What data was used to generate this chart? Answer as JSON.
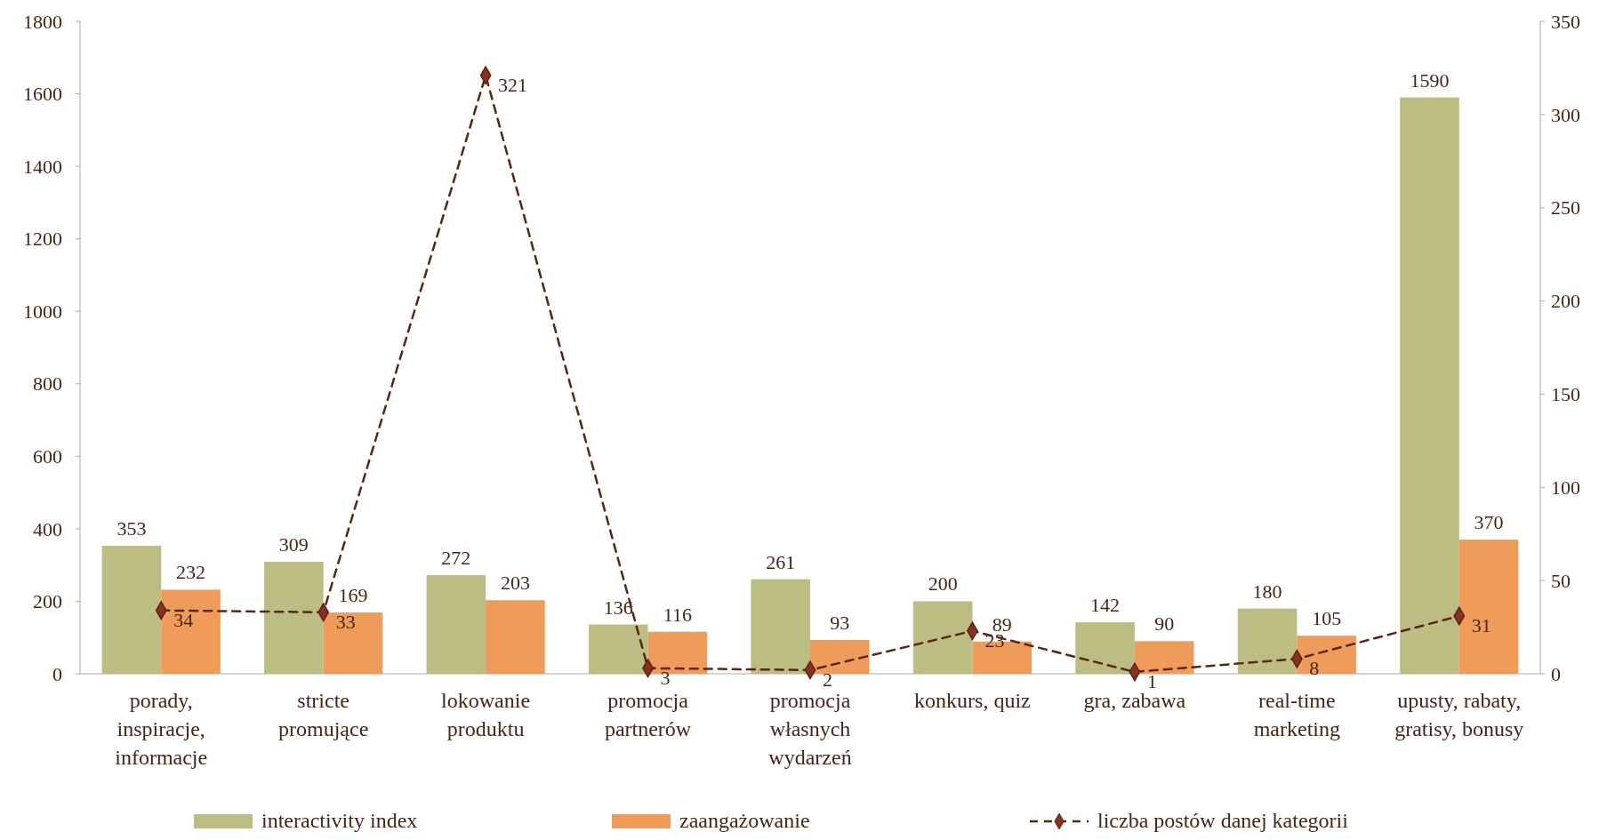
{
  "chart_data": {
    "type": "bar",
    "categories": [
      "porady, inspiracje, informacje",
      "stricte promujące",
      "lokowanie produktu",
      "promocja partnerów",
      "promocja własnych wydarzeń",
      "konkurs, quiz",
      "gra, zabawa",
      "real-time marketing",
      "upusty, rabaty, gratisy, bonusy"
    ],
    "series": [
      {
        "name": "interactivity index",
        "color": "#bcbd82",
        "values": [
          353,
          309,
          272,
          136,
          261,
          200,
          142,
          180,
          1590
        ]
      },
      {
        "name": "zaangażowanie",
        "color": "#ef9c5a",
        "values": [
          232,
          169,
          203,
          116,
          93,
          89,
          90,
          105,
          370
        ]
      },
      {
        "name": "liczba postów danej kategorii",
        "type": "line",
        "axis": "y2",
        "color": "#5c2412",
        "values": [
          34,
          33,
          321,
          3,
          2,
          23,
          1,
          8,
          31
        ],
        "marker": "diamond",
        "line_style": "dashed"
      }
    ],
    "ylim": [
      0,
      1800
    ],
    "yticks": [
      0,
      200,
      400,
      600,
      800,
      1000,
      1200,
      1400,
      1600,
      1800
    ],
    "y2lim": [
      0,
      350
    ],
    "y2ticks": [
      0,
      50,
      100,
      150,
      200,
      250,
      300,
      350
    ],
    "data_labels": true,
    "legend": "bottom",
    "grid": false
  }
}
